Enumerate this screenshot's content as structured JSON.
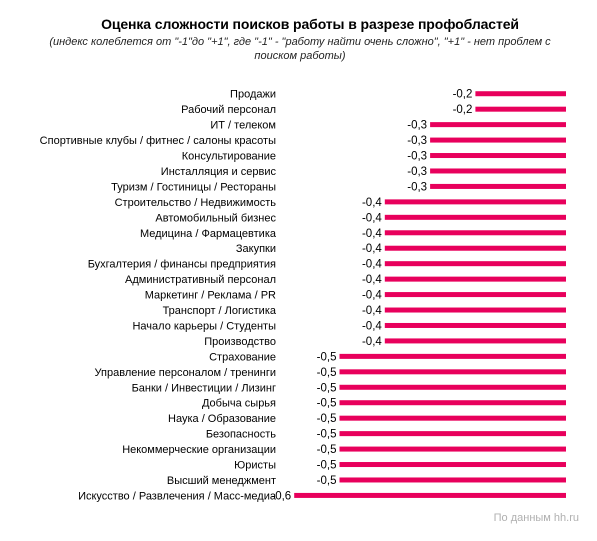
{
  "chart_data": {
    "type": "bar",
    "orientation": "horizontal",
    "title": "Оценка сложности поисков работы в разрезе профобластей",
    "subtitle": "(индекс колеблется от \"-1\"до \"+1\",  где \"-1\" - \"работу найти очень сложно\", \"+1\" - нет проблем с поиском работы)",
    "categories": [
      "Продажи",
      "Рабочий персонал",
      "ИТ / телеком",
      "Спортивные клубы / фитнес / салоны красоты",
      "Консультирование",
      "Инсталляция и сервис",
      "Туризм / Гостиницы / Рестораны",
      "Строительство / Недвижимость",
      "Автомобильный бизнес",
      "Медицина / Фармацевтика",
      "Закупки",
      "Бухгалтерия  / финансы предприятия",
      "Административный персонал",
      "Маркетинг / Реклама / PR",
      "Транспорт / Логистика",
      "Начало карьеры / Студенты",
      "Производство",
      "Страхование",
      "Управление персоналом / тренинги",
      "Банки / Инвестиции / Лизинг",
      "Добыча сырья",
      "Наука / Образование",
      "Безопасность",
      "Некоммерческие организации",
      "Юристы",
      "Высший менеджмент",
      "Искусство / Развлечения / Масс-медиа"
    ],
    "values": [
      -0.2,
      -0.2,
      -0.3,
      -0.3,
      -0.3,
      -0.3,
      -0.3,
      -0.4,
      -0.4,
      -0.4,
      -0.4,
      -0.4,
      -0.4,
      -0.4,
      -0.4,
      -0.4,
      -0.4,
      -0.5,
      -0.5,
      -0.5,
      -0.5,
      -0.5,
      -0.5,
      -0.5,
      -0.5,
      -0.5,
      -0.6
    ],
    "value_labels": [
      "-0,2",
      "-0,2",
      "-0,3",
      "-0,3",
      "-0,3",
      "-0,3",
      "-0,3",
      "-0,4",
      "-0,4",
      "-0,4",
      "-0,4",
      "-0,4",
      "-0,4",
      "-0,4",
      "-0,4",
      "-0,4",
      "-0,4",
      "-0,5",
      "-0,5",
      "-0,5",
      "-0,5",
      "-0,5",
      "-0,5",
      "-0,5",
      "-0,5",
      "-0,5",
      "-0,6"
    ],
    "xlim": [
      -0.6,
      0
    ],
    "grid": false,
    "legend": "none",
    "bar_color": "#e8005c"
  },
  "source": "По данным  hh.ru"
}
